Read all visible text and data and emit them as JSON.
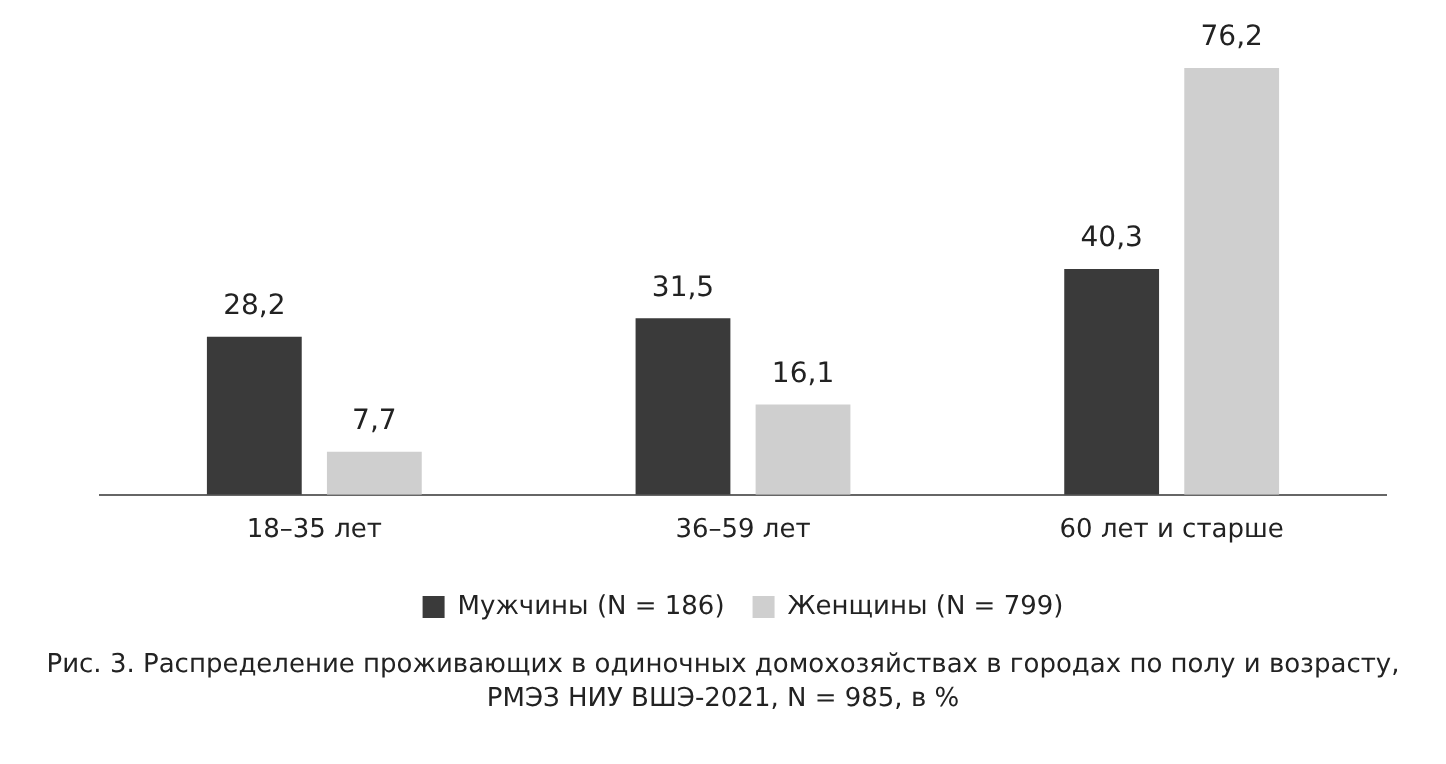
{
  "chart_data": {
    "type": "bar",
    "categories": [
      "18–35 лет",
      "36–59 лет",
      "60 лет и старше"
    ],
    "series": [
      {
        "name": "Мужчины (N = 186)",
        "color": "#3a3a3a",
        "values": [
          28.2,
          31.5,
          40.3
        ],
        "value_labels": [
          "28,2",
          "31,5",
          "40,3"
        ]
      },
      {
        "name": "Женщины (N = 799)",
        "color": "#cfcfcf",
        "values": [
          7.7,
          16.1,
          76.2
        ],
        "value_labels": [
          "7,7",
          "16,1",
          "76,2"
        ]
      }
    ],
    "legend": "bottom",
    "grid": false,
    "tick_labels": "x",
    "annotations": [
      "Рис. 3. Распределение проживающих в одиночных домохозяйствах в городах по полу и возрасту, РМЭЗ НИУ ВШЭ-2021, N = 985, в %"
    ]
  }
}
